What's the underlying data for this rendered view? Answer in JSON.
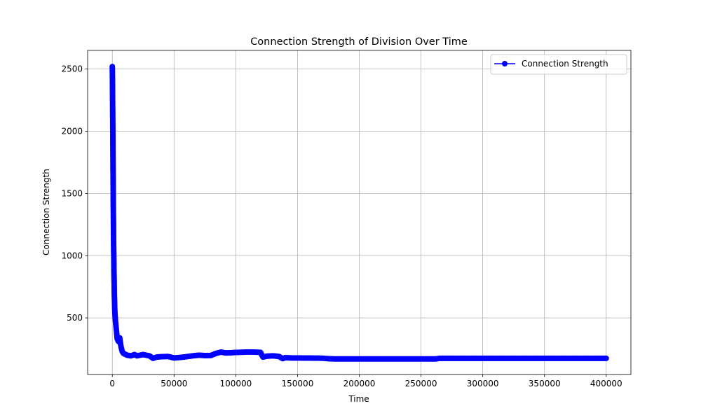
{
  "chart_data": {
    "type": "line",
    "title": "Connection Strength of Division Over Time",
    "xlabel": "Time",
    "ylabel": "Connection Strength",
    "xlim": [
      -20000,
      420000
    ],
    "ylim": [
      45,
      2650
    ],
    "xticks": [
      0,
      50000,
      100000,
      150000,
      200000,
      250000,
      300000,
      350000,
      400000
    ],
    "yticks": [
      500,
      1000,
      1500,
      2000,
      2500
    ],
    "grid": true,
    "legend_position": "top-right",
    "series": [
      {
        "name": "Connection Strength",
        "color": "#0000ff",
        "marker": "circle",
        "x": [
          0,
          200,
          400,
          600,
          800,
          1000,
          1300,
          1600,
          2000,
          2500,
          3000,
          3500,
          4000,
          5000,
          6000,
          7000,
          8000,
          9000,
          10000,
          12000,
          15000,
          18000,
          20000,
          25000,
          30000,
          33000,
          36000,
          40000,
          45000,
          50000,
          55000,
          60000,
          65000,
          70000,
          75000,
          80000,
          84000,
          88000,
          92000,
          96000,
          100000,
          105000,
          110000,
          115000,
          120000,
          122000,
          125000,
          130000,
          135000,
          138000,
          140000,
          145000,
          150000,
          160000,
          170000,
          175000,
          180000,
          200000,
          220000,
          240000,
          255000,
          262000,
          265000,
          280000,
          300000,
          320000,
          340000,
          360000,
          380000,
          400000
        ],
        "y": [
          2520,
          2300,
          2000,
          1700,
          1400,
          1150,
          900,
          700,
          560,
          480,
          430,
          380,
          330,
          310,
          340,
          270,
          230,
          215,
          210,
          200,
          195,
          205,
          195,
          205,
          195,
          175,
          185,
          188,
          190,
          178,
          182,
          188,
          195,
          200,
          197,
          198,
          215,
          225,
          218,
          220,
          222,
          224,
          226,
          225,
          223,
          185,
          192,
          195,
          190,
          172,
          180,
          178,
          178,
          177,
          176,
          172,
          170,
          170,
          170,
          170,
          170,
          170,
          175,
          175,
          175,
          175,
          175,
          175,
          175,
          175
        ]
      }
    ]
  }
}
